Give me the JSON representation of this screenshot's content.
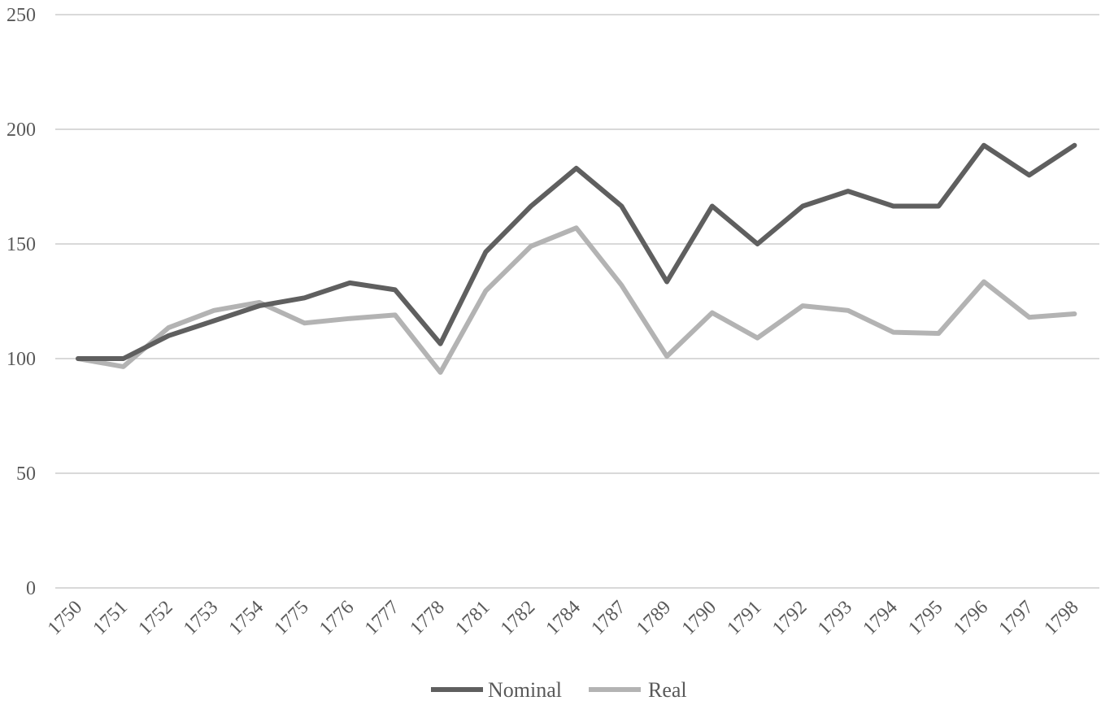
{
  "chart_data": {
    "type": "line",
    "categories": [
      "1750",
      "1751",
      "1752",
      "1753",
      "1754",
      "1775",
      "1776",
      "1777",
      "1778",
      "1781",
      "1782",
      "1784",
      "1787",
      "1789",
      "1790",
      "1791",
      "1792",
      "1793",
      "1794",
      "1795",
      "1796",
      "1797",
      "1798"
    ],
    "series": [
      {
        "name": "Nominal",
        "color": "#5f5f5f",
        "values": [
          100,
          100,
          110,
          116.5,
          123,
          126.5,
          133,
          130,
          106.5,
          146.5,
          166.5,
          183,
          166.5,
          133.5,
          166.5,
          150,
          166.5,
          173,
          166.5,
          166.5,
          193,
          180,
          193
        ]
      },
      {
        "name": "Real",
        "color": "#b3b3b3",
        "values": [
          100,
          96.5,
          113.5,
          121,
          124.5,
          115.5,
          117.5,
          119,
          94,
          129.5,
          149,
          157,
          132,
          101,
          120,
          109,
          123,
          121,
          111.5,
          111,
          133.5,
          118,
          119.5
        ]
      }
    ],
    "yticks": [
      0,
      50,
      100,
      150,
      200,
      250
    ],
    "ylim": [
      0,
      250
    ],
    "grid": true,
    "legend_position": "bottom",
    "title": "",
    "xlabel": "",
    "ylabel": ""
  }
}
